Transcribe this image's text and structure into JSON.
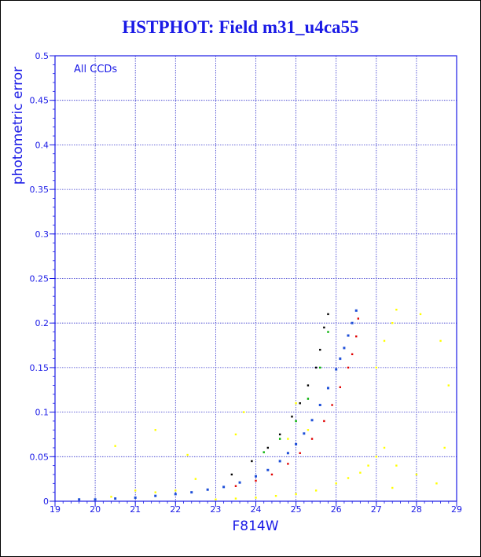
{
  "colors": {
    "axis": "#1a1ae6",
    "grid": "#3333cc",
    "band_blue": "#1e4fd8",
    "band_red": "#e00000",
    "band_black": "#000000",
    "band_green": "#00b000",
    "outlier_yellow": "#ffff00"
  },
  "chart_data": {
    "type": "scatter",
    "title": "HSTPHOT: Field m31_u4ca55",
    "xlabel": "F814W",
    "ylabel": "photometric error",
    "xlim": [
      19,
      29
    ],
    "ylim": [
      0,
      0.5
    ],
    "xticks": [
      "19",
      "20",
      "21",
      "22",
      "23",
      "24",
      "25",
      "26",
      "27",
      "28",
      "29"
    ],
    "yticks": [
      "0",
      "0.05",
      "0.1",
      "0.15",
      "0.2",
      "0.25",
      "0.3",
      "0.35",
      "0.4",
      "0.45",
      "0.5"
    ],
    "grid": true,
    "annotation": "All CCDs",
    "series": [
      {
        "color": "blue",
        "points": [
          [
            19.6,
            0.002
          ],
          [
            20.0,
            0.002
          ],
          [
            20.5,
            0.003
          ],
          [
            21.0,
            0.004
          ],
          [
            21.5,
            0.006
          ],
          [
            22.0,
            0.008
          ],
          [
            22.4,
            0.01
          ],
          [
            22.8,
            0.013
          ],
          [
            23.2,
            0.016
          ],
          [
            23.6,
            0.021
          ],
          [
            24.0,
            0.028
          ],
          [
            24.3,
            0.035
          ],
          [
            24.6,
            0.045
          ],
          [
            24.8,
            0.054
          ],
          [
            25.0,
            0.064
          ],
          [
            25.2,
            0.076
          ],
          [
            25.4,
            0.091
          ],
          [
            25.6,
            0.108
          ],
          [
            25.8,
            0.127
          ],
          [
            26.0,
            0.148
          ],
          [
            26.1,
            0.16
          ],
          [
            26.2,
            0.172
          ],
          [
            26.3,
            0.186
          ],
          [
            26.4,
            0.2
          ],
          [
            26.5,
            0.214
          ]
        ]
      },
      {
        "color": "red",
        "points": [
          [
            23.5,
            0.017
          ],
          [
            24.0,
            0.023
          ],
          [
            24.4,
            0.03
          ],
          [
            24.8,
            0.042
          ],
          [
            25.1,
            0.054
          ],
          [
            25.4,
            0.07
          ],
          [
            25.7,
            0.09
          ],
          [
            25.9,
            0.108
          ],
          [
            26.1,
            0.128
          ],
          [
            26.3,
            0.15
          ],
          [
            26.4,
            0.165
          ],
          [
            26.5,
            0.185
          ],
          [
            26.55,
            0.205
          ]
        ]
      },
      {
        "color": "black",
        "points": [
          [
            23.4,
            0.03
          ],
          [
            23.9,
            0.045
          ],
          [
            24.3,
            0.06
          ],
          [
            24.6,
            0.075
          ],
          [
            24.9,
            0.095
          ],
          [
            25.1,
            0.11
          ],
          [
            25.3,
            0.13
          ],
          [
            25.5,
            0.15
          ],
          [
            25.6,
            0.17
          ],
          [
            25.7,
            0.195
          ],
          [
            25.8,
            0.21
          ]
        ]
      },
      {
        "color": "green",
        "points": [
          [
            24.2,
            0.055
          ],
          [
            24.6,
            0.07
          ],
          [
            25.0,
            0.09
          ],
          [
            25.3,
            0.115
          ],
          [
            25.6,
            0.15
          ],
          [
            25.8,
            0.19
          ]
        ]
      },
      {
        "color": "yellow",
        "points": [
          [
            20.4,
            0.005
          ],
          [
            21.0,
            0.012
          ],
          [
            21.5,
            0.01
          ],
          [
            22.0,
            0.012
          ],
          [
            22.5,
            0.025
          ],
          [
            23.0,
            0.002
          ],
          [
            23.5,
            0.003
          ],
          [
            24.0,
            0.004
          ],
          [
            24.5,
            0.006
          ],
          [
            25.0,
            0.008
          ],
          [
            25.5,
            0.012
          ],
          [
            26.0,
            0.02
          ],
          [
            26.3,
            0.026
          ],
          [
            26.6,
            0.032
          ],
          [
            26.8,
            0.04
          ],
          [
            27.0,
            0.05
          ],
          [
            27.2,
            0.06
          ],
          [
            24.8,
            0.07
          ],
          [
            25.0,
            0.11
          ],
          [
            25.3,
            0.08
          ],
          [
            27.0,
            0.15
          ],
          [
            27.2,
            0.18
          ],
          [
            27.4,
            0.2
          ],
          [
            27.5,
            0.215
          ],
          [
            28.1,
            0.21
          ],
          [
            28.6,
            0.18
          ],
          [
            28.8,
            0.13
          ],
          [
            28.7,
            0.06
          ],
          [
            27.5,
            0.04
          ],
          [
            28.0,
            0.03
          ],
          [
            20.5,
            0.062
          ],
          [
            21.5,
            0.08
          ],
          [
            22.3,
            0.052
          ],
          [
            23.5,
            0.075
          ],
          [
            23.7,
            0.1
          ],
          [
            27.4,
            0.015
          ],
          [
            28.5,
            0.02
          ]
        ]
      }
    ]
  }
}
